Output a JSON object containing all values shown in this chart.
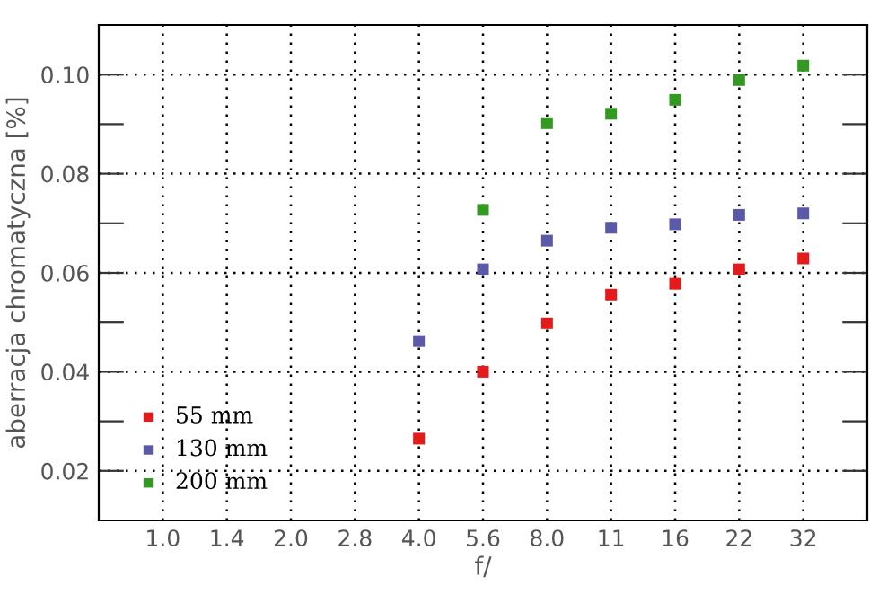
{
  "chart_data": {
    "type": "scatter",
    "xlabel": "f/",
    "ylabel": "aberracja chromatyczna [%]",
    "categories": [
      "1.0",
      "1.4",
      "2.0",
      "2.8",
      "4.0",
      "5.6",
      "8.0",
      "11",
      "16",
      "22",
      "32"
    ],
    "series": [
      {
        "name": "55 mm",
        "color": "#e31b1b",
        "values": [
          null,
          null,
          null,
          null,
          0.0265,
          0.04,
          0.0498,
          0.0556,
          0.0578,
          0.0607,
          0.0629
        ]
      },
      {
        "name": "130 mm",
        "color": "#5a5aa8",
        "values": [
          null,
          null,
          null,
          null,
          0.0462,
          0.0607,
          0.0665,
          0.0691,
          0.0698,
          0.0717,
          0.072
        ]
      },
      {
        "name": "200 mm",
        "color": "#339922",
        "values": [
          null,
          null,
          null,
          null,
          null,
          0.0727,
          0.0902,
          0.0921,
          0.0949,
          0.0989,
          0.1018
        ]
      }
    ],
    "ylim": [
      0.01,
      0.11
    ],
    "yticks": [
      {
        "value": 0.02,
        "label": "0.02"
      },
      {
        "value": 0.03,
        "label": null
      },
      {
        "value": 0.04,
        "label": "0.04"
      },
      {
        "value": 0.05,
        "label": null
      },
      {
        "value": 0.06,
        "label": "0.06"
      },
      {
        "value": 0.07,
        "label": null
      },
      {
        "value": 0.08,
        "label": "0.08"
      },
      {
        "value": 0.09,
        "label": null
      },
      {
        "value": 0.1,
        "label": "0.10"
      }
    ],
    "grid": true,
    "legend": "bottom left",
    "marker": "square"
  }
}
